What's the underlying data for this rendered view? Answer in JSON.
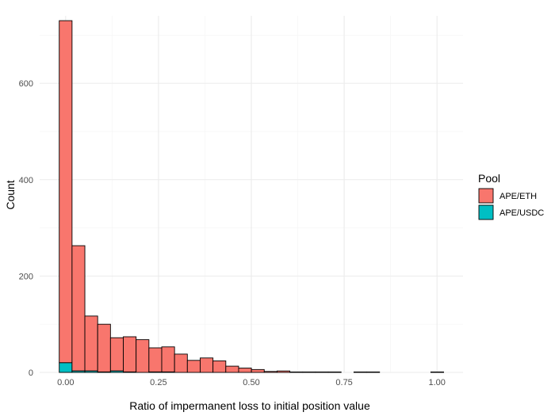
{
  "chart_data": {
    "type": "bar",
    "subtype": "stacked-histogram",
    "xlabel": "Ratio of impermanent loss to initial position value",
    "ylabel": "Count",
    "xlim": [
      -0.07,
      1.07
    ],
    "ylim": [
      0,
      740
    ],
    "bin_width": 0.0345,
    "x_ticks": [
      0.0,
      0.25,
      0.5,
      0.75,
      1.0
    ],
    "x_tick_labels": [
      "0.00",
      "0.25",
      "0.50",
      "0.75",
      "1.00"
    ],
    "y_ticks": [
      0,
      200,
      400,
      600
    ],
    "y_tick_labels": [
      "0",
      "200",
      "400",
      "600"
    ],
    "grid": true,
    "legend": {
      "title": "Pool",
      "position": "right"
    },
    "colors": {
      "APE/ETH": "#F8766D",
      "APE/USDC": "#00BFC4",
      "outline": "#000000"
    },
    "bin_centers": [
      0.0,
      0.0345,
      0.069,
      0.1035,
      0.138,
      0.1725,
      0.207,
      0.2415,
      0.276,
      0.3105,
      0.345,
      0.3795,
      0.414,
      0.4485,
      0.483,
      0.5175,
      0.552,
      0.5865,
      0.621,
      0.6555,
      0.69,
      0.7245,
      0.759,
      0.7935,
      0.828,
      0.8625,
      0.897,
      0.9315,
      0.966,
      1.0005
    ],
    "series": [
      {
        "name": "APE/USDC",
        "values": [
          20,
          3,
          3,
          1,
          3,
          1,
          0,
          1,
          1,
          0,
          0,
          0,
          0,
          0,
          0,
          0,
          0,
          0,
          0,
          0,
          0,
          0,
          0,
          0,
          0,
          0,
          0,
          0,
          0,
          0
        ]
      },
      {
        "name": "APE/ETH",
        "values": [
          710,
          260,
          114,
          99,
          69,
          73,
          68,
          50,
          52,
          38,
          25,
          30,
          24,
          13,
          9,
          6,
          2,
          3,
          1,
          1,
          1,
          1,
          0,
          1,
          1,
          0,
          0,
          0,
          0,
          1
        ]
      }
    ]
  }
}
